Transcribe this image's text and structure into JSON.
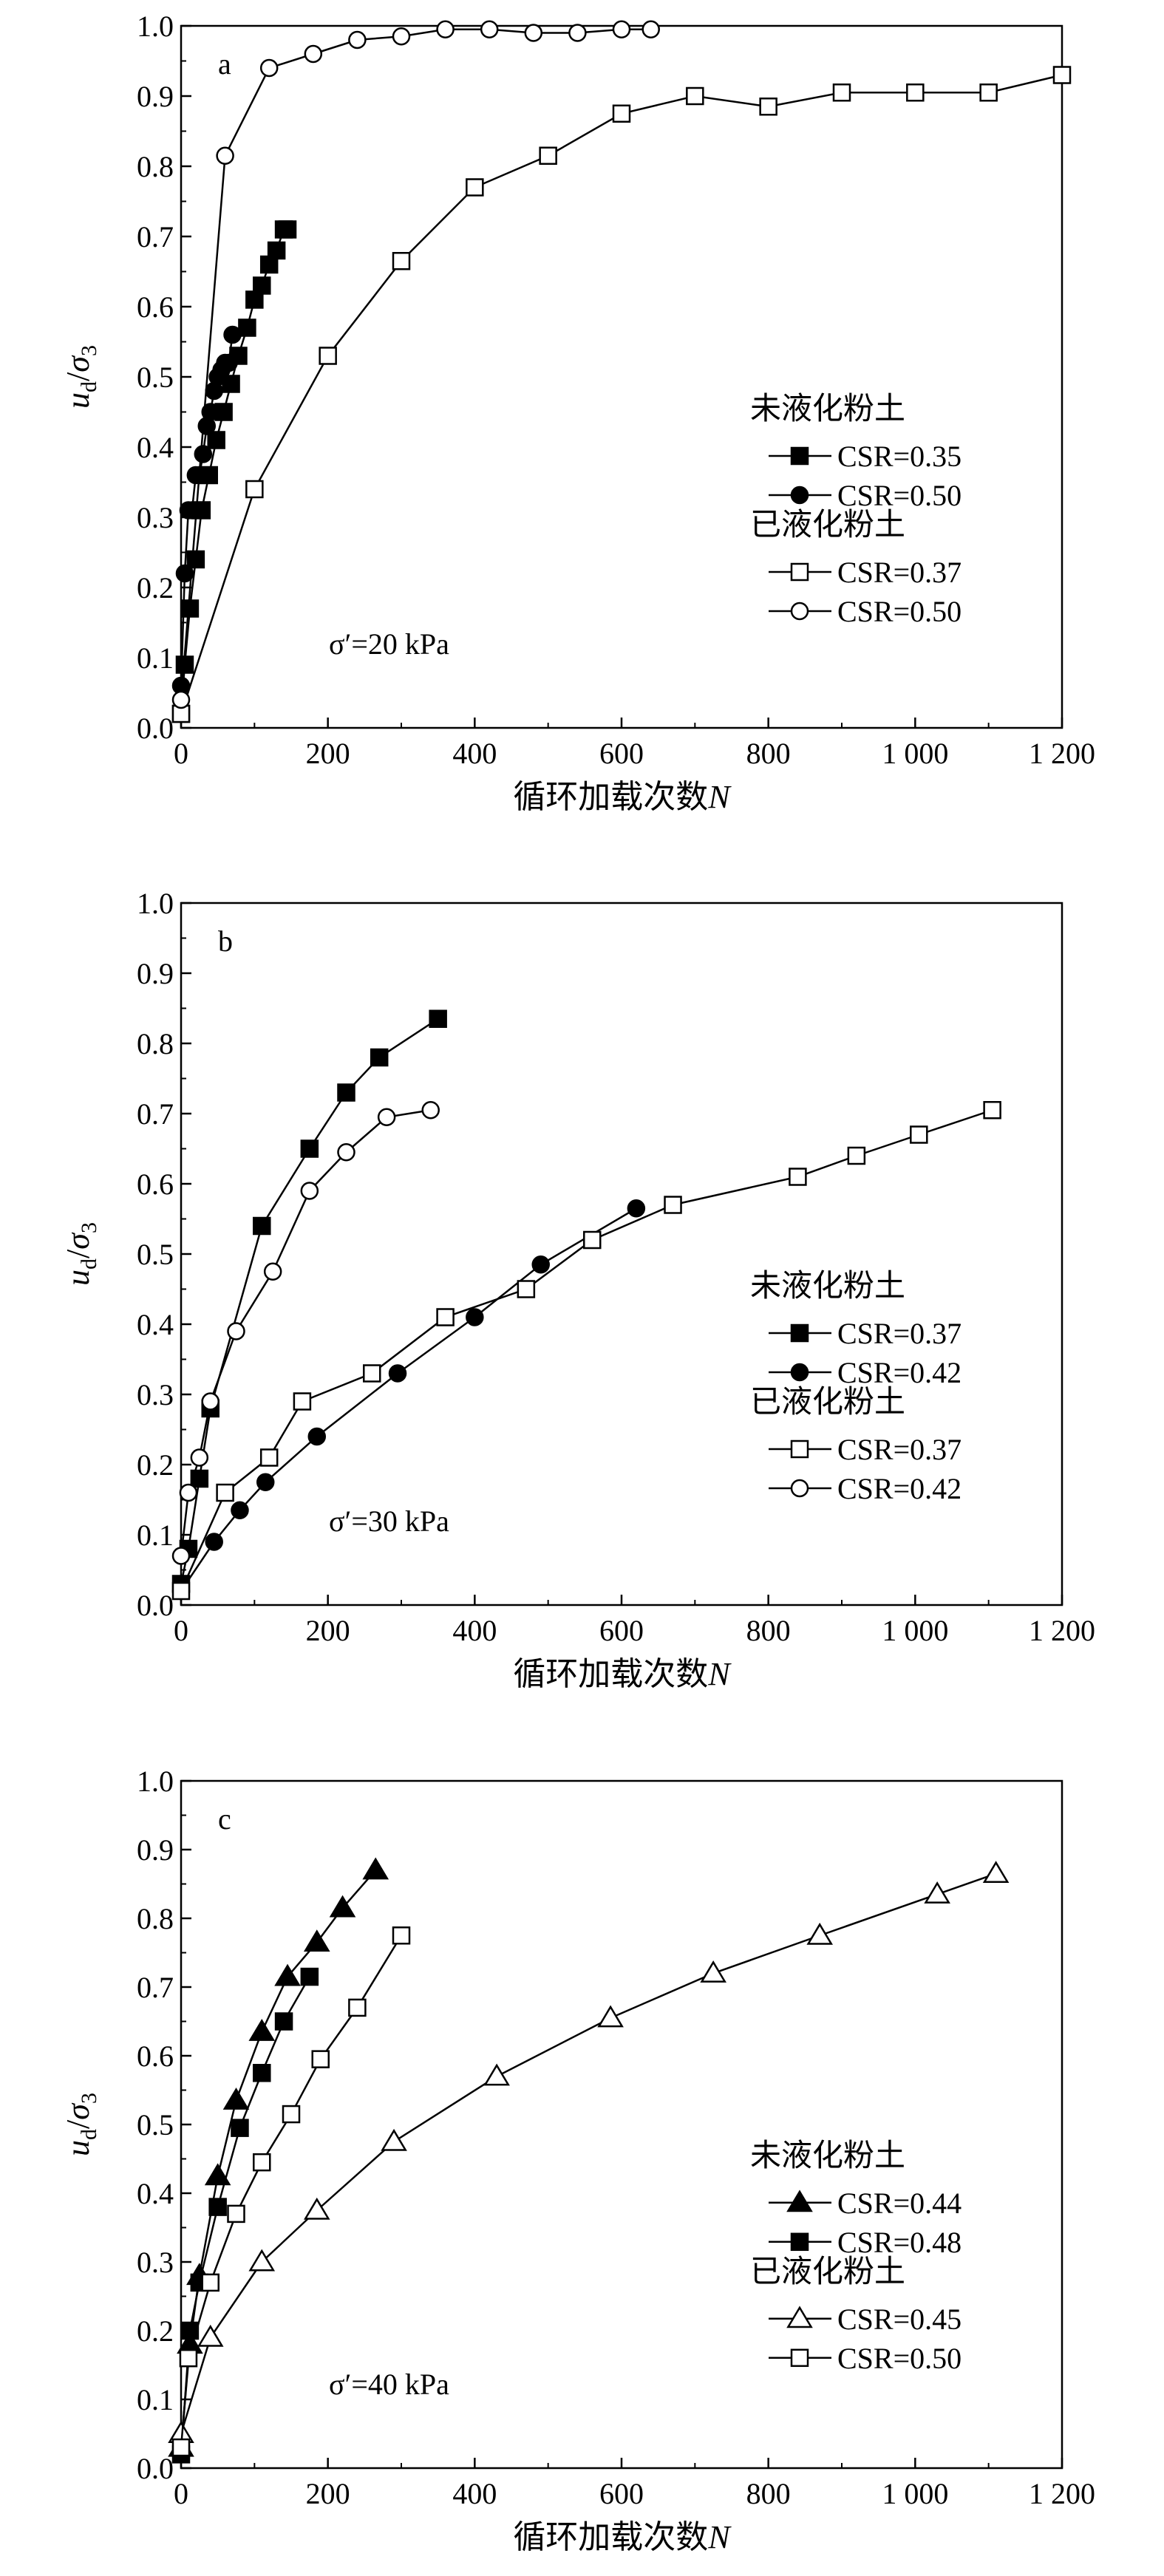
{
  "chart_data": [
    {
      "type": "line",
      "panel_label": "a",
      "xlabel_text": "循环加载次数",
      "xlabel_var": "N",
      "ylabel": {
        "u": "u",
        "u_sub": "d",
        "slash": "/",
        "sigma": "σ",
        "sigma_sub": "3"
      },
      "xlim": [
        0,
        1200
      ],
      "ylim": [
        0.0,
        1.0
      ],
      "xticks": [
        0,
        200,
        400,
        600,
        800,
        1000,
        1200
      ],
      "xtick_labels": [
        "0",
        "200",
        "400",
        "600",
        "800",
        "1 000",
        "1 200"
      ],
      "yticks": [
        0.0,
        0.1,
        0.2,
        0.3,
        0.4,
        0.5,
        0.6,
        0.7,
        0.8,
        0.9,
        1.0
      ],
      "ytick_labels": [
        "0.0",
        "0.1",
        "0.2",
        "0.3",
        "0.4",
        "0.5",
        "0.6",
        "0.7",
        "0.8",
        "0.9",
        "1.0"
      ],
      "annotation": "σ′=20 kPa",
      "legend_group_1": "未液化粉土",
      "legend_group_2": "已液化粉土",
      "series": [
        {
          "name": "CSR=0.35",
          "marker": "square",
          "filled": true,
          "x": [
            0,
            5,
            12,
            20,
            28,
            38,
            48,
            58,
            68,
            78,
            90,
            100,
            110,
            120,
            130,
            140,
            145
          ],
          "y": [
            0.02,
            0.09,
            0.17,
            0.24,
            0.31,
            0.36,
            0.41,
            0.45,
            0.49,
            0.53,
            0.57,
            0.61,
            0.63,
            0.66,
            0.68,
            0.71,
            0.71
          ]
        },
        {
          "name": "CSR=0.50",
          "marker": "circle",
          "filled": true,
          "x": [
            0,
            5,
            10,
            15,
            20,
            25,
            30,
            35,
            40,
            45,
            50,
            55,
            60,
            65,
            70
          ],
          "y": [
            0.06,
            0.22,
            0.31,
            0.31,
            0.36,
            0.36,
            0.39,
            0.43,
            0.45,
            0.48,
            0.5,
            0.51,
            0.52,
            0.52,
            0.56
          ]
        },
        {
          "name": "CSR=0.37",
          "marker": "square",
          "filled": false,
          "x": [
            0,
            100,
            200,
            300,
            400,
            500,
            600,
            700,
            800,
            900,
            1000,
            1100,
            1200
          ],
          "y": [
            0.02,
            0.34,
            0.53,
            0.665,
            0.77,
            0.815,
            0.875,
            0.9,
            0.885,
            0.905,
            0.905,
            0.905,
            0.93
          ]
        },
        {
          "name": "CSR=0.50",
          "marker": "circle",
          "filled": false,
          "x": [
            0,
            60,
            120,
            180,
            240,
            300,
            360,
            420,
            480,
            540,
            600,
            640
          ],
          "y": [
            0.04,
            0.815,
            0.94,
            0.96,
            0.98,
            0.985,
            0.995,
            0.995,
            0.99,
            0.99,
            0.995,
            0.995
          ]
        }
      ]
    },
    {
      "type": "line",
      "panel_label": "b",
      "xlabel_text": "循环加载次数",
      "xlabel_var": "N",
      "ylabel": {
        "u": "u",
        "u_sub": "d",
        "slash": "/",
        "sigma": "σ",
        "sigma_sub": "3"
      },
      "xlim": [
        0,
        1200
      ],
      "ylim": [
        0.0,
        1.0
      ],
      "xticks": [
        0,
        200,
        400,
        600,
        800,
        1000,
        1200
      ],
      "xtick_labels": [
        "0",
        "200",
        "400",
        "600",
        "800",
        "1 000",
        "1 200"
      ],
      "yticks": [
        0.0,
        0.1,
        0.2,
        0.3,
        0.4,
        0.5,
        0.6,
        0.7,
        0.8,
        0.9,
        1.0
      ],
      "ytick_labels": [
        "0.0",
        "0.1",
        "0.2",
        "0.3",
        "0.4",
        "0.5",
        "0.6",
        "0.7",
        "0.8",
        "0.9",
        "1.0"
      ],
      "annotation": "σ′=30 kPa",
      "legend_group_1": "未液化粉土",
      "legend_group_2": "已液化粉土",
      "series": [
        {
          "name": "CSR=0.37",
          "marker": "square",
          "filled": true,
          "x": [
            0,
            10,
            25,
            40,
            110,
            175,
            225,
            270,
            350
          ],
          "y": [
            0.03,
            0.08,
            0.18,
            0.28,
            0.54,
            0.65,
            0.73,
            0.78,
            0.835
          ]
        },
        {
          "name": "CSR=0.42",
          "marker": "circle",
          "filled": true,
          "x": [
            0,
            45,
            80,
            115,
            185,
            295,
            400,
            490,
            620
          ],
          "y": [
            0.02,
            0.09,
            0.135,
            0.175,
            0.24,
            0.33,
            0.41,
            0.485,
            0.565
          ]
        },
        {
          "name": "CSR=0.37",
          "marker": "square",
          "filled": false,
          "x": [
            0,
            60,
            120,
            165,
            260,
            360,
            470,
            560,
            670,
            840,
            920,
            1005,
            1105
          ],
          "y": [
            0.02,
            0.16,
            0.21,
            0.29,
            0.33,
            0.41,
            0.45,
            0.52,
            0.57,
            0.61,
            0.64,
            0.67,
            0.705
          ]
        },
        {
          "name": "CSR=0.42",
          "marker": "circle",
          "filled": false,
          "x": [
            0,
            10,
            25,
            40,
            75,
            125,
            175,
            225,
            280,
            340
          ],
          "y": [
            0.07,
            0.16,
            0.21,
            0.29,
            0.39,
            0.475,
            0.59,
            0.645,
            0.695,
            0.705
          ]
        }
      ]
    },
    {
      "type": "line",
      "panel_label": "c",
      "xlabel_text": "循环加载次数",
      "xlabel_var": "N",
      "ylabel": {
        "u": "u",
        "u_sub": "d",
        "slash": "/",
        "sigma": "σ",
        "sigma_sub": "3"
      },
      "xlim": [
        0,
        1200
      ],
      "ylim": [
        0.0,
        1.0
      ],
      "xticks": [
        0,
        200,
        400,
        600,
        800,
        1000,
        1200
      ],
      "xtick_labels": [
        "0",
        "200",
        "400",
        "600",
        "800",
        "1 000",
        "1 200"
      ],
      "yticks": [
        0.0,
        0.1,
        0.2,
        0.3,
        0.4,
        0.5,
        0.6,
        0.7,
        0.8,
        0.9,
        1.0
      ],
      "ytick_labels": [
        "0.0",
        "0.1",
        "0.2",
        "0.3",
        "0.4",
        "0.5",
        "0.6",
        "0.7",
        "0.8",
        "0.9",
        "1.0"
      ],
      "annotation": "σ′=40 kPa",
      "legend_group_1": "未液化粉土",
      "legend_group_2": "已液化粉土",
      "series": [
        {
          "name": "CSR=0.44",
          "marker": "triangle",
          "filled": true,
          "x": [
            0,
            12,
            25,
            50,
            75,
            110,
            145,
            185,
            220,
            265
          ],
          "y": [
            0.03,
            0.18,
            0.28,
            0.425,
            0.535,
            0.635,
            0.715,
            0.765,
            0.815,
            0.87
          ]
        },
        {
          "name": "CSR=0.48",
          "marker": "square",
          "filled": true,
          "x": [
            0,
            12,
            25,
            50,
            80,
            110,
            140,
            175
          ],
          "y": [
            0.02,
            0.2,
            0.27,
            0.38,
            0.495,
            0.575,
            0.65,
            0.715
          ]
        },
        {
          "name": "CSR=0.45",
          "marker": "triangle",
          "filled": false,
          "x": [
            0,
            40,
            110,
            185,
            290,
            430,
            585,
            725,
            870,
            1030,
            1110
          ],
          "y": [
            0.05,
            0.19,
            0.3,
            0.375,
            0.475,
            0.57,
            0.655,
            0.72,
            0.775,
            0.835,
            0.865
          ]
        },
        {
          "name": "CSR=0.50",
          "marker": "square",
          "filled": false,
          "x": [
            0,
            10,
            40,
            75,
            110,
            150,
            190,
            240,
            300
          ],
          "y": [
            0.03,
            0.16,
            0.27,
            0.37,
            0.445,
            0.515,
            0.595,
            0.67,
            0.775
          ]
        }
      ]
    }
  ]
}
